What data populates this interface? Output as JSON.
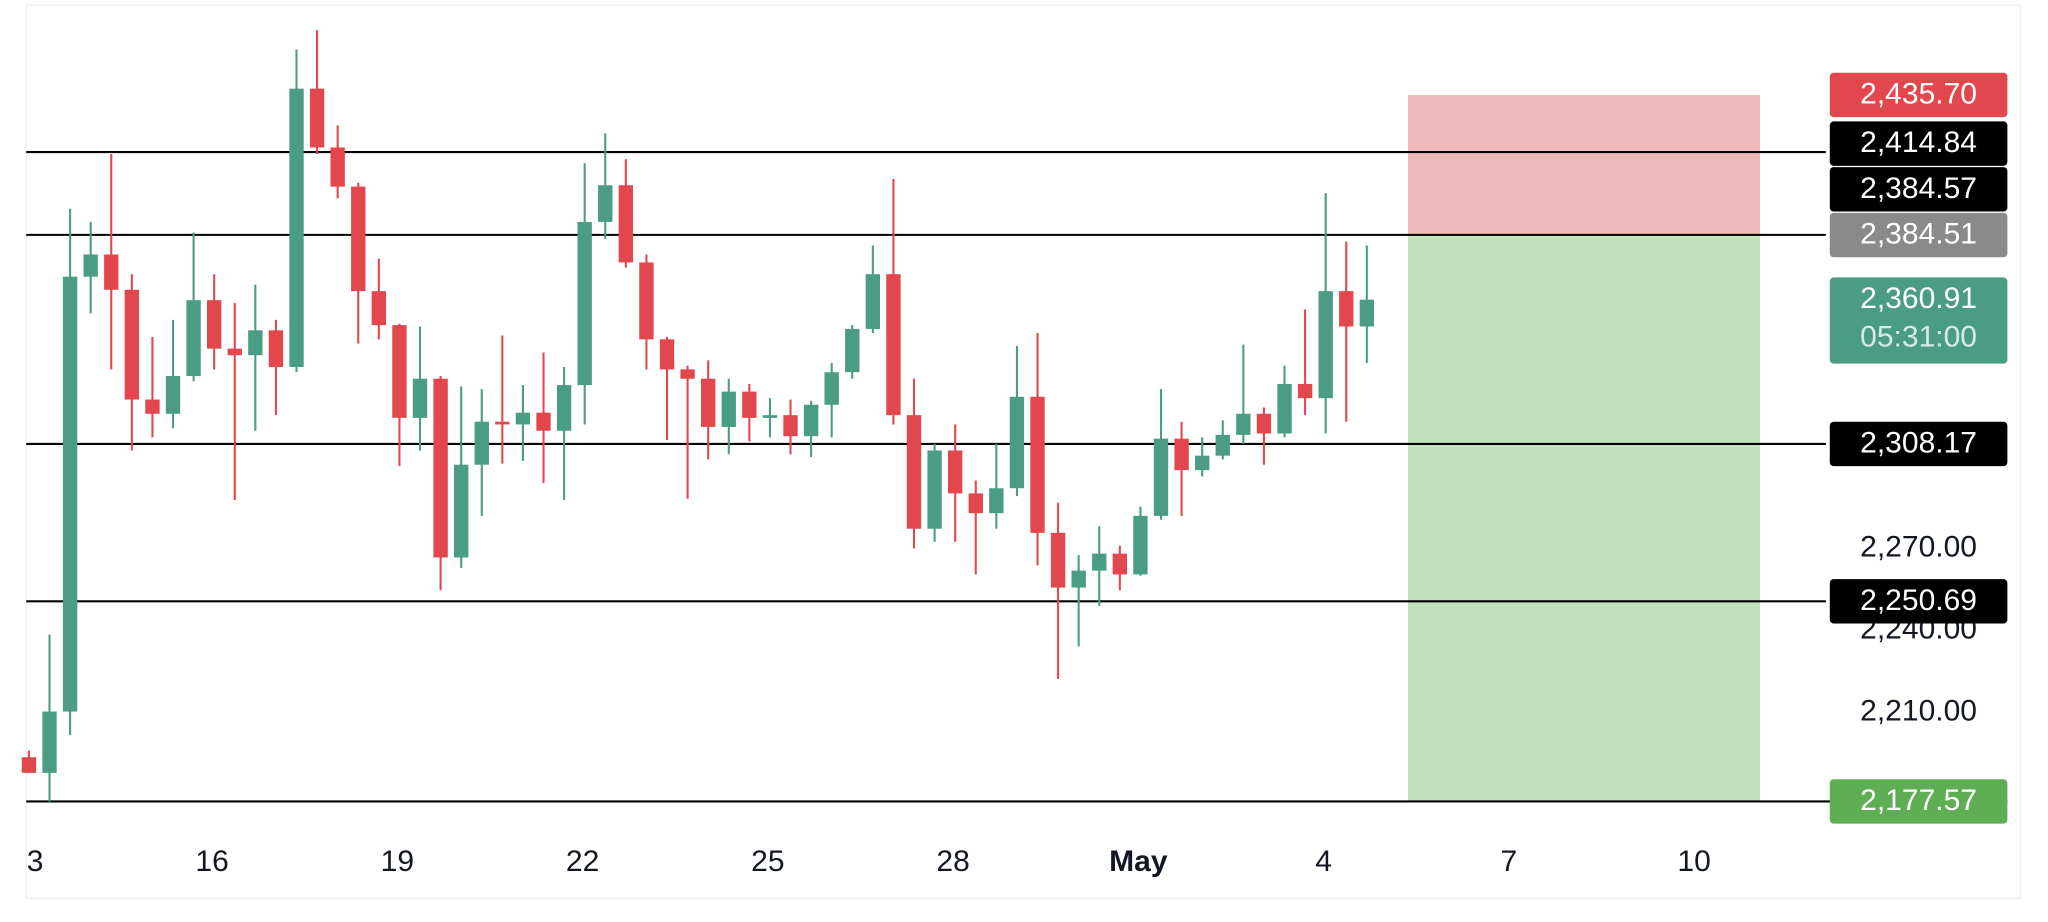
{
  "chart_data": {
    "type": "candlestick",
    "up_color": "#4a9c85",
    "down_color": "#e2474e",
    "open": [
      2193.7,
      2188.0,
      2210.4,
      2369.3,
      2377.4,
      2364.5,
      2324.4,
      2319.2,
      2333.0,
      2360.7,
      2343.0,
      2340.6,
      2349.7,
      2336.3,
      2438.0,
      2416.5,
      2402.2,
      2364.0,
      2351.6,
      2317.7,
      2332.0,
      2266.7,
      2300.6,
      2316.3,
      2315.3,
      2319.6,
      2313.0,
      2329.7,
      2389.3,
      2402.7,
      2374.5,
      2346.4,
      2335.4,
      2332.0,
      2314.4,
      2327.3,
      2317.7,
      2318.7,
      2311.0,
      2322.5,
      2334.4,
      2350.2,
      2370.2,
      2318.7,
      2277.2,
      2305.8,
      2290.1,
      2282.9,
      2292.0,
      2325.4,
      2275.7,
      2255.7,
      2261.9,
      2268.1,
      2260.5,
      2281.9,
      2310.1,
      2298.6,
      2303.9,
      2311.5,
      2319.2,
      2312.0,
      2330.1,
      2324.9,
      2364.0,
      2351.1
    ],
    "high": [
      2196.1,
      2238.5,
      2394.1,
      2389.3,
      2414.1,
      2370.2,
      2347.3,
      2353.5,
      2385.5,
      2370.2,
      2359.7,
      2366.4,
      2353.5,
      2452.3,
      2459.4,
      2424.6,
      2403.6,
      2375.9,
      2352.1,
      2351.1,
      2333.0,
      2329.2,
      2328.2,
      2347.8,
      2329.7,
      2341.6,
      2336.3,
      2410.8,
      2421.7,
      2412.2,
      2377.4,
      2347.3,
      2336.8,
      2338.7,
      2332.0,
      2330.1,
      2324.9,
      2324.4,
      2323.9,
      2337.8,
      2351.6,
      2380.7,
      2405.0,
      2332.0,
      2308.2,
      2315.3,
      2294.8,
      2308.2,
      2344.0,
      2348.7,
      2286.7,
      2267.6,
      2278.1,
      2271.0,
      2285.3,
      2328.2,
      2316.3,
      2310.6,
      2316.8,
      2344.4,
      2321.5,
      2336.8,
      2357.3,
      2399.8,
      2382.1,
      2380.7
    ],
    "low": [
      2188.0,
      2177.5,
      2201.8,
      2355.9,
      2335.4,
      2305.8,
      2310.6,
      2313.9,
      2331.1,
      2335.4,
      2287.7,
      2313.0,
      2318.7,
      2334.4,
      2414.1,
      2397.9,
      2344.9,
      2346.4,
      2300.1,
      2305.8,
      2254.7,
      2262.9,
      2281.9,
      2301.0,
      2302.0,
      2293.9,
      2287.7,
      2315.3,
      2383.1,
      2372.6,
      2335.4,
      2309.6,
      2288.1,
      2302.5,
      2304.4,
      2309.1,
      2310.6,
      2304.4,
      2303.4,
      2310.6,
      2332.0,
      2348.7,
      2315.3,
      2270.0,
      2272.4,
      2272.4,
      2260.5,
      2277.2,
      2289.1,
      2263.8,
      2222.3,
      2234.2,
      2249.0,
      2254.7,
      2260.0,
      2280.5,
      2281.9,
      2296.3,
      2302.5,
      2308.2,
      2300.6,
      2310.6,
      2318.7,
      2312.0,
      2316.3,
      2337.8
    ],
    "close": [
      2188.0,
      2210.4,
      2369.3,
      2377.4,
      2364.5,
      2324.4,
      2319.2,
      2333.0,
      2360.7,
      2343.0,
      2340.6,
      2349.7,
      2336.3,
      2438.0,
      2416.5,
      2402.2,
      2364.0,
      2351.6,
      2317.7,
      2332.0,
      2266.7,
      2300.6,
      2316.3,
      2315.3,
      2319.6,
      2313.0,
      2329.7,
      2389.3,
      2402.7,
      2374.5,
      2346.4,
      2335.4,
      2332.0,
      2314.4,
      2327.3,
      2317.7,
      2318.7,
      2311.0,
      2322.5,
      2334.4,
      2350.2,
      2370.2,
      2318.7,
      2277.2,
      2305.8,
      2290.1,
      2282.9,
      2292.0,
      2325.4,
      2275.7,
      2255.7,
      2261.9,
      2268.1,
      2260.5,
      2281.9,
      2310.1,
      2298.6,
      2303.9,
      2311.5,
      2319.2,
      2312.0,
      2330.1,
      2324.9,
      2364.0,
      2351.1,
      2360.9
    ],
    "xlim": [
      -0.13,
      87.3
    ],
    "xticks": [
      {
        "value": 0.3,
        "label": "3"
      },
      {
        "value": 8.9,
        "label": "16"
      },
      {
        "value": 17.9,
        "label": "19"
      },
      {
        "value": 26.9,
        "label": "22"
      },
      {
        "value": 35.9,
        "label": "25"
      },
      {
        "value": 44.9,
        "label": "28"
      },
      {
        "value": 53.9,
        "label": "May"
      },
      {
        "value": 62.9,
        "label": "4"
      },
      {
        "value": 71.9,
        "label": "7"
      },
      {
        "value": 80.9,
        "label": "10"
      }
    ],
    "ylim": [
      2165,
      2468
    ],
    "yticks": [
      {
        "value": 2270,
        "label": "2,270.00"
      },
      {
        "value": 2240,
        "label": "2,240.00"
      },
      {
        "value": 2210,
        "label": "2,210.00"
      }
    ],
    "levels": [
      {
        "value": 2414.84,
        "label": "2,414.84",
        "color": "#000000"
      },
      {
        "value": 2384.57,
        "label": "2,384.57",
        "color": "#000000"
      },
      {
        "value": 2308.17,
        "label": "2,308.17",
        "color": "#000000"
      },
      {
        "value": 2250.69,
        "label": "2,250.69",
        "color": "#000000"
      }
    ],
    "position": {
      "x": [
        67.0,
        84.1
      ],
      "stop": {
        "value": 2435.7,
        "label": "2,435.70",
        "color": "#e2474e"
      },
      "entry": {
        "value": 2384.51,
        "label": "2,384.51",
        "color": "#8a8a8a"
      },
      "target": {
        "value": 2177.57,
        "label": "2,177.57",
        "color": "#5fae56"
      },
      "loss_color": "#f0b9bc",
      "profit_color": "#c2e2be"
    },
    "last_price": {
      "value": 2360.91,
      "label": "2,360.91",
      "countdown": "05:31:00",
      "color": "#4a9c85"
    }
  }
}
